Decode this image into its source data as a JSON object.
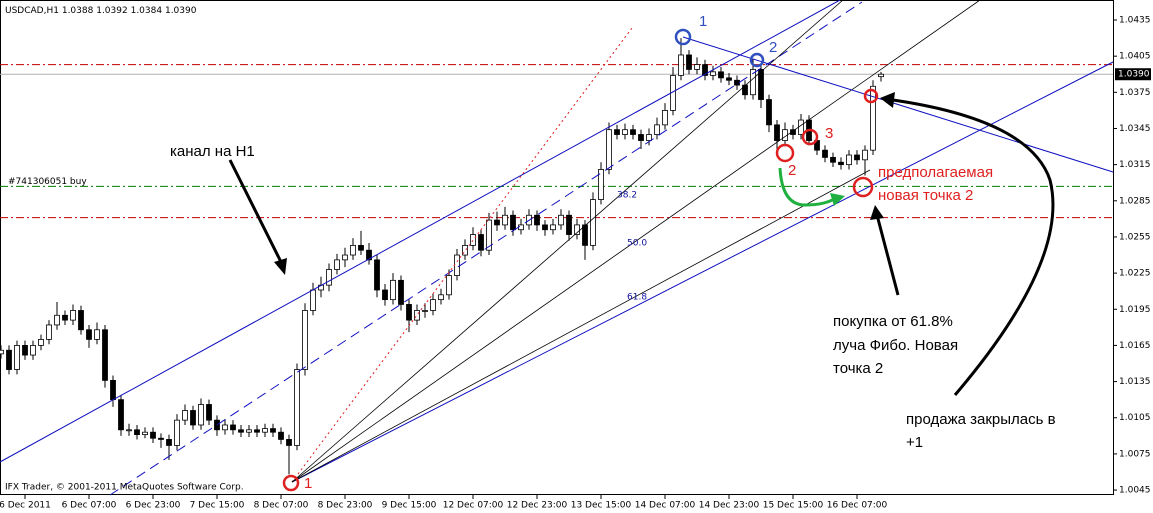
{
  "chart_data": {
    "type": "candlestick",
    "symbol": "USDCAD,H1",
    "copyright": "IFX Trader, © 2001-2011 MetaQuotes Software Corp.",
    "categories": [
      null,
      null,
      null,
      "6 Dec 2011",
      null,
      null,
      null,
      null,
      null,
      null,
      null,
      "6 Dec 07:00",
      null,
      null,
      null,
      null,
      null,
      null,
      null,
      "6 Dec 23:00",
      null,
      null,
      null,
      null,
      null,
      null,
      null,
      "7 Dec 15:00",
      null,
      null,
      null,
      null,
      null,
      null,
      null,
      "8 Dec 07:00",
      null,
      null,
      null,
      null,
      null,
      null,
      null,
      "8 Dec 23:00",
      null,
      null,
      null,
      null,
      null,
      null,
      null,
      "9 Dec 15:00",
      null,
      null,
      null,
      null,
      null,
      null,
      null,
      "12 Dec 07:00",
      null,
      null,
      null,
      null,
      null,
      null,
      null,
      "12 Dec 23:00",
      null,
      null,
      null,
      null,
      null,
      null,
      null,
      "13 Dec 15:00",
      null,
      null,
      null,
      null,
      null,
      null,
      null,
      "14 Dec 07:00",
      null,
      null,
      null,
      null,
      null,
      null,
      null,
      "14 Dec 23:00",
      null,
      null,
      null,
      null,
      null,
      null,
      null,
      "15 Dec 15:00",
      null,
      null,
      null,
      null,
      null,
      null,
      null,
      "16 Dec 07:00",
      null,
      null,
      null
    ],
    "ohlc": [
      [
        1.0158,
        1.0165,
        1.0154,
        1.0161
      ],
      [
        1.0161,
        1.0165,
        1.0141,
        1.0145
      ],
      [
        1.0145,
        1.0169,
        1.0141,
        1.0165
      ],
      [
        1.0165,
        1.0169,
        1.0153,
        1.0157
      ],
      [
        1.0157,
        1.0169,
        1.0153,
        1.0165
      ],
      [
        1.0165,
        1.0174,
        1.0161,
        1.017
      ],
      [
        1.017,
        1.0186,
        1.0166,
        1.0182
      ],
      [
        1.0182,
        1.0201,
        1.0178,
        1.019
      ],
      [
        1.019,
        1.0194,
        1.0182,
        1.0186
      ],
      [
        1.0186,
        1.0199,
        1.0182,
        1.0194
      ],
      [
        1.0194,
        1.0198,
        1.0174,
        1.0178
      ],
      [
        1.0178,
        1.0182,
        1.0163,
        1.017
      ],
      [
        1.017,
        1.0184,
        1.0166,
        1.0178
      ],
      [
        1.0178,
        1.0182,
        1.013,
        1.0136
      ],
      [
        1.0136,
        1.014,
        1.0114,
        1.012
      ],
      [
        1.012,
        1.0124,
        1.009,
        1.0095
      ],
      [
        1.0095,
        1.01,
        1.009,
        1.0095
      ],
      [
        1.0095,
        1.0099,
        1.0087,
        1.0091
      ],
      [
        1.0091,
        1.0097,
        1.0088,
        1.0093
      ],
      [
        1.0093,
        1.0097,
        1.0084,
        1.0088
      ],
      [
        1.0088,
        1.0092,
        1.008,
        1.0087
      ],
      [
        1.0087,
        1.0091,
        1.007,
        1.0082
      ],
      [
        1.0082,
        1.0108,
        1.0078,
        1.0103
      ],
      [
        1.0103,
        1.0116,
        1.0099,
        1.0111
      ],
      [
        1.0111,
        1.0115,
        1.0095,
        1.0099
      ],
      [
        1.0099,
        1.0121,
        1.0095,
        1.0116
      ],
      [
        1.0116,
        1.012,
        1.0099,
        1.0103
      ],
      [
        1.0103,
        1.0107,
        1.009,
        1.0095
      ],
      [
        1.0095,
        1.0104,
        1.0091,
        1.0099
      ],
      [
        1.0099,
        1.0103,
        1.0091,
        1.0095
      ],
      [
        1.0095,
        1.0099,
        1.0089,
        1.0093
      ],
      [
        1.0093,
        1.0099,
        1.0089,
        1.0095
      ],
      [
        1.0095,
        1.0099,
        1.0089,
        1.0093
      ],
      [
        1.0093,
        1.01,
        1.0089,
        1.0096
      ],
      [
        1.0096,
        1.01,
        1.0089,
        1.0093
      ],
      [
        1.0093,
        1.0097,
        1.0083,
        1.0087
      ],
      [
        1.0087,
        1.0091,
        1.0058,
        1.0082
      ],
      [
        1.0082,
        1.015,
        1.0078,
        1.0145
      ],
      [
        1.0145,
        1.02,
        1.014,
        1.0194
      ],
      [
        1.0194,
        1.0217,
        1.019,
        1.0211
      ],
      [
        1.0211,
        1.0222,
        1.0205,
        1.0215
      ],
      [
        1.0215,
        1.0233,
        1.021,
        1.0228
      ],
      [
        1.0228,
        1.0241,
        1.0224,
        1.0236
      ],
      [
        1.0236,
        1.0246,
        1.023,
        1.024
      ],
      [
        1.024,
        1.0254,
        1.0236,
        1.0248
      ],
      [
        1.0248,
        1.026,
        1.024,
        1.0244
      ],
      [
        1.0244,
        1.025,
        1.0232,
        1.0236
      ],
      [
        1.0236,
        1.024,
        1.0205,
        1.0211
      ],
      [
        1.0211,
        1.0216,
        1.0198,
        1.0203
      ],
      [
        1.0203,
        1.0225,
        1.0199,
        1.0219
      ],
      [
        1.0219,
        1.0223,
        1.0194,
        1.0199
      ],
      [
        1.0199,
        1.0203,
        1.0176,
        1.0186
      ],
      [
        1.0186,
        1.0199,
        1.0182,
        1.0194
      ],
      [
        1.0194,
        1.02,
        1.0188,
        1.0194
      ],
      [
        1.0194,
        1.0208,
        1.019,
        1.0203
      ],
      [
        1.0203,
        1.0212,
        1.0199,
        1.0207
      ],
      [
        1.0207,
        1.0228,
        1.0203,
        1.0223
      ],
      [
        1.0223,
        1.0245,
        1.0219,
        1.024
      ],
      [
        1.024,
        1.0253,
        1.0236,
        1.0248
      ],
      [
        1.0248,
        1.0263,
        1.0244,
        1.0257
      ],
      [
        1.0257,
        1.0261,
        1.0239,
        1.0244
      ],
      [
        1.0244,
        1.0275,
        1.024,
        1.0269
      ],
      [
        1.0269,
        1.0276,
        1.026,
        1.0265
      ],
      [
        1.0265,
        1.028,
        1.0261,
        1.0273
      ],
      [
        1.0273,
        1.0277,
        1.0256,
        1.0261
      ],
      [
        1.0261,
        1.027,
        1.0257,
        1.0265
      ],
      [
        1.0265,
        1.0278,
        1.0261,
        1.0273
      ],
      [
        1.0273,
        1.0277,
        1.026,
        1.0265
      ],
      [
        1.0265,
        1.0269,
        1.0256,
        1.0261
      ],
      [
        1.0261,
        1.027,
        1.0257,
        1.0265
      ],
      [
        1.0265,
        1.0278,
        1.0261,
        1.0273
      ],
      [
        1.0273,
        1.0277,
        1.0252,
        1.0257
      ],
      [
        1.0257,
        1.027,
        1.0253,
        1.0265
      ],
      [
        1.0265,
        1.0269,
        1.0236,
        1.0248
      ],
      [
        1.0248,
        1.0292,
        1.0244,
        1.0286
      ],
      [
        1.0286,
        1.0317,
        1.0282,
        1.0311
      ],
      [
        1.0311,
        1.035,
        1.0307,
        1.0344
      ],
      [
        1.0344,
        1.0348,
        1.0336,
        1.034
      ],
      [
        1.034,
        1.0349,
        1.0336,
        1.0344
      ],
      [
        1.0344,
        1.0348,
        1.0336,
        1.034
      ],
      [
        1.034,
        1.0344,
        1.0328,
        1.0335
      ],
      [
        1.0335,
        1.0345,
        1.0331,
        1.034
      ],
      [
        1.034,
        1.0354,
        1.0336,
        1.0348
      ],
      [
        1.0348,
        1.0366,
        1.0344,
        1.036
      ],
      [
        1.036,
        1.0396,
        1.0356,
        1.0389
      ],
      [
        1.0389,
        1.042,
        1.0385,
        1.0406
      ],
      [
        1.0406,
        1.041,
        1.039,
        1.0394
      ],
      [
        1.0394,
        1.0404,
        1.039,
        1.0398
      ],
      [
        1.0398,
        1.0402,
        1.0385,
        1.0389
      ],
      [
        1.0389,
        1.0397,
        1.0385,
        1.0392
      ],
      [
        1.0392,
        1.0396,
        1.0383,
        1.0387
      ],
      [
        1.0387,
        1.0391,
        1.0381,
        1.0385
      ],
      [
        1.0385,
        1.0389,
        1.0377,
        1.0381
      ],
      [
        1.0381,
        1.0385,
        1.0369,
        1.0373
      ],
      [
        1.0373,
        1.0403,
        1.0369,
        1.0394
      ],
      [
        1.0394,
        1.0398,
        1.0362,
        1.0369
      ],
      [
        1.0369,
        1.0373,
        1.0342,
        1.0348
      ],
      [
        1.0348,
        1.0352,
        1.0325,
        1.0335
      ],
      [
        1.0335,
        1.035,
        1.0331,
        1.0344
      ],
      [
        1.0344,
        1.0348,
        1.0336,
        1.034
      ],
      [
        1.034,
        1.0357,
        1.0336,
        1.0352
      ],
      [
        1.0352,
        1.0356,
        1.0331,
        1.0335
      ],
      [
        1.0335,
        1.0339,
        1.0323,
        1.0327
      ],
      [
        1.0327,
        1.0331,
        1.0317,
        1.0321
      ],
      [
        1.0321,
        1.0325,
        1.0313,
        1.0317
      ],
      [
        1.0317,
        1.0321,
        1.0311,
        1.0315
      ],
      [
        1.0315,
        1.0327,
        1.0311,
        1.0323
      ],
      [
        1.0323,
        1.0327,
        1.0315,
        1.0319
      ],
      [
        1.0319,
        1.0331,
        1.0306,
        1.0327
      ],
      [
        1.0327,
        1.0385,
        1.0323,
        1.038
      ],
      [
        1.0388,
        1.0392,
        1.0384,
        1.039
      ]
    ],
    "header_close": "1.0390",
    "last_price": {
      "value": 1.039,
      "label": "1.0390"
    },
    "ylim": [
      1.00409,
      1.04516
    ],
    "yticks": [
      1.0435,
      1.0405,
      1.0375,
      1.0345,
      1.0315,
      1.0285,
      1.0255,
      1.0225,
      1.0195,
      1.0165,
      1.0135,
      1.0105,
      1.0075,
      1.0045
    ],
    "levels": [
      {
        "value": 1.0398,
        "color": "#c00000"
      },
      {
        "value": 1.0297,
        "color": "#008000",
        "label": "#741306051 buy"
      },
      {
        "value": 1.0271,
        "color": "#c00000"
      }
    ],
    "fibo_labels": [
      "38.2",
      "50.0",
      "61.8"
    ],
    "annotations": {
      "channel": "канал на H1",
      "new_point": [
        "предполагаемая",
        "новая точка 2"
      ],
      "buy": [
        "покупка от 61.8%",
        "луча Фибо. Новая",
        "точка 2"
      ],
      "sell": [
        "продажа закрылась в",
        "+1"
      ],
      "points": [
        "1",
        "2",
        "1",
        "2",
        "3"
      ]
    }
  }
}
